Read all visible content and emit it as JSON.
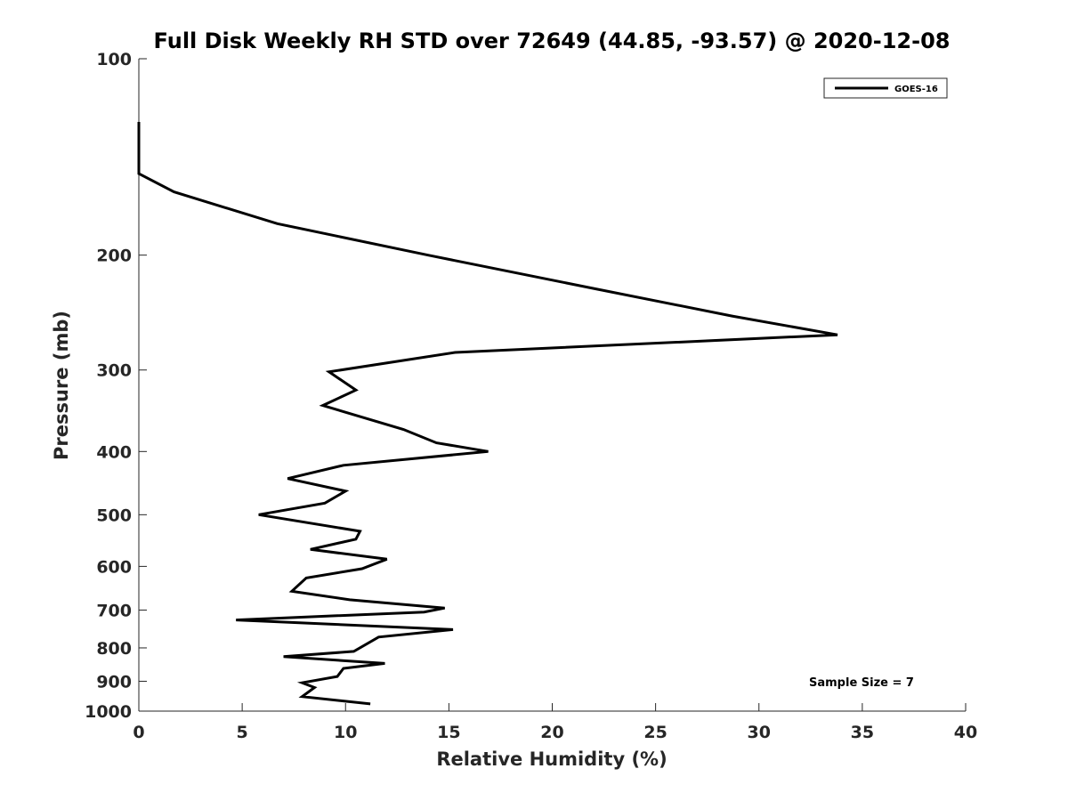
{
  "chart_data": {
    "type": "line",
    "title": "Full Disk Weekly RH STD over 72649 (44.85, -93.57) @ 2020-12-08",
    "xlabel": "Relative Humidity (%)",
    "ylabel": "Pressure (mb)",
    "xlim": [
      0,
      40
    ],
    "ylim": [
      100,
      1000
    ],
    "yscale": "log",
    "y_reversed": true,
    "xticks": [
      0,
      5,
      10,
      15,
      20,
      25,
      30,
      35,
      40
    ],
    "yticks": [
      100,
      200,
      300,
      400,
      500,
      600,
      700,
      800,
      900,
      1000
    ],
    "grid": false,
    "legend": {
      "position": "top-right",
      "entries": [
        "GOES-16"
      ]
    },
    "annotations": [
      {
        "text": "Sample Size = 7",
        "position": "bottom-right"
      }
    ],
    "series": [
      {
        "name": "GOES-16",
        "color": "#000000",
        "x": [
          0,
          0,
          1.7,
          6.7,
          14,
          22,
          28.7,
          33.8,
          15.3,
          9.2,
          10.5,
          8.9,
          12.8,
          14.4,
          16.9,
          9.9,
          7.2,
          10.0,
          9.0,
          5.8,
          10.7,
          10.5,
          8.3,
          12.0,
          10.8,
          8.1,
          7.4,
          10.2,
          14.8,
          13.8,
          4.7,
          15.2,
          11.6,
          10.4,
          7.0,
          11.9,
          9.9,
          9.6,
          7.9,
          8.5,
          7.9,
          11.2
        ],
        "y": [
          125,
          150,
          160,
          179,
          200,
          225,
          248,
          265,
          282,
          302,
          322,
          340,
          370,
          388,
          400,
          420,
          440,
          460,
          480,
          500,
          530,
          545,
          565,
          585,
          605,
          625,
          655,
          675,
          695,
          705,
          725,
          750,
          770,
          810,
          825,
          845,
          860,
          885,
          905,
          920,
          950,
          975
        ]
      }
    ]
  }
}
